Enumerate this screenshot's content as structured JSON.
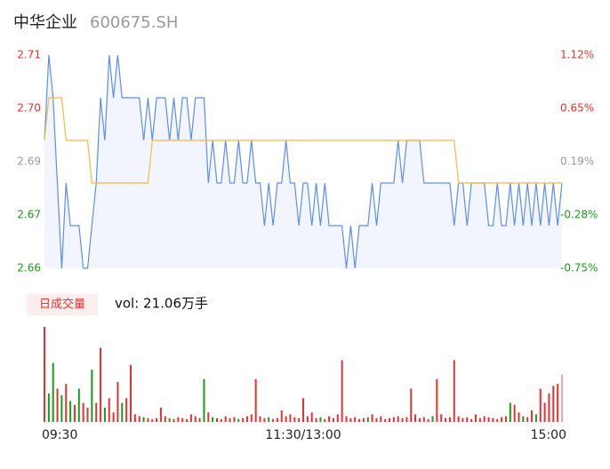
{
  "chart_data": [
    {
      "type": "line",
      "title": "中华企业",
      "subtitle": "600675.SH",
      "x": [
        0,
        2,
        4,
        6,
        8,
        10,
        12,
        14,
        16,
        18,
        20,
        22,
        24,
        26,
        28,
        30,
        32,
        34,
        36,
        38,
        40,
        42,
        44,
        46,
        48,
        50,
        52,
        54,
        56,
        58,
        60,
        62,
        64,
        66,
        68,
        70,
        72,
        74,
        76,
        78,
        80,
        82,
        84,
        86,
        88,
        90,
        92,
        94,
        96,
        98,
        100,
        102,
        104,
        106,
        108,
        110,
        112,
        114,
        116,
        118,
        120,
        122,
        124,
        126,
        128,
        130,
        132,
        134,
        136,
        138,
        140,
        142,
        144,
        146,
        148,
        150,
        152,
        154,
        156,
        158,
        160,
        162,
        164,
        166,
        168,
        170,
        172,
        174,
        176,
        178,
        180,
        182,
        184,
        186,
        188,
        190,
        192,
        194,
        196,
        198,
        200,
        202,
        204,
        206,
        208,
        210,
        212,
        214,
        216,
        218,
        220,
        222,
        224,
        226,
        228,
        230,
        232,
        234,
        236,
        238,
        240
      ],
      "xlim": [
        0,
        240
      ],
      "ylim": [
        2.66,
        2.71
      ],
      "yticks": [
        {
          "value": 2.71,
          "label": "2.71"
        },
        {
          "value": 2.6975,
          "label": "2.70"
        },
        {
          "value": 2.685,
          "label": "2.69"
        },
        {
          "value": 2.6725,
          "label": "2.67"
        },
        {
          "value": 2.66,
          "label": "2.66"
        }
      ],
      "ytick_colors": [
        "#e8302f",
        "#e8302f",
        "#999999",
        "#1a9a1a",
        "#1a9a1a"
      ],
      "y2lim": [
        -0.75,
        1.12
      ],
      "y2ticks": [
        {
          "value": 1.12,
          "label": "1.12%"
        },
        {
          "value": 0.6525,
          "label": "0.65%"
        },
        {
          "value": 0.185,
          "label": "0.19%"
        },
        {
          "value": -0.2825,
          "label": "-0.28%"
        },
        {
          "value": -0.75,
          "label": "-0.75%"
        }
      ],
      "series": [
        {
          "color": "#5b8ef0",
          "fill": "#f2f5fd",
          "values": [
            2.69,
            2.71,
            2.7,
            2.68,
            2.66,
            2.68,
            2.67,
            2.67,
            2.67,
            2.66,
            2.66,
            2.67,
            2.68,
            2.7,
            2.69,
            2.71,
            2.7,
            2.71,
            2.7,
            2.7,
            2.7,
            2.7,
            2.7,
            2.69,
            2.7,
            2.69,
            2.7,
            2.7,
            2.7,
            2.69,
            2.7,
            2.69,
            2.7,
            2.7,
            2.69,
            2.7,
            2.7,
            2.7,
            2.68,
            2.69,
            2.68,
            2.68,
            2.69,
            2.68,
            2.68,
            2.69,
            2.68,
            2.68,
            2.69,
            2.68,
            2.68,
            2.67,
            2.68,
            2.67,
            2.68,
            2.68,
            2.69,
            2.68,
            2.68,
            2.67,
            2.68,
            2.68,
            2.67,
            2.68,
            2.67,
            2.68,
            2.67,
            2.67,
            2.67,
            2.67,
            2.66,
            2.67,
            2.66,
            2.67,
            2.67,
            2.67,
            2.68,
            2.67,
            2.68,
            2.68,
            2.68,
            2.68,
            2.69,
            2.68,
            2.69,
            2.69,
            2.69,
            2.69,
            2.68,
            2.68,
            2.68,
            2.68,
            2.68,
            2.68,
            2.68,
            2.67,
            2.68,
            2.68,
            2.67,
            2.68,
            2.68,
            2.68,
            2.68,
            2.67,
            2.67,
            2.68,
            2.67,
            2.67,
            2.68,
            2.67,
            2.68,
            2.67,
            2.68,
            2.67,
            2.68,
            2.67,
            2.68,
            2.67,
            2.68,
            2.67,
            2.68
          ]
        },
        {
          "color": "#f5b942",
          "values": [
            2.69,
            2.7,
            2.7,
            2.7,
            2.7,
            2.69,
            2.69,
            2.69,
            2.69,
            2.69,
            2.69,
            2.68,
            2.68,
            2.68,
            2.68,
            2.68,
            2.68,
            2.68,
            2.68,
            2.68,
            2.68,
            2.68,
            2.68,
            2.68,
            2.68,
            2.69,
            2.69,
            2.69,
            2.69,
            2.69,
            2.69,
            2.69,
            2.69,
            2.69,
            2.69,
            2.69,
            2.69,
            2.69,
            2.69,
            2.69,
            2.69,
            2.69,
            2.69,
            2.69,
            2.69,
            2.69,
            2.69,
            2.69,
            2.69,
            2.69,
            2.69,
            2.69,
            2.69,
            2.69,
            2.69,
            2.69,
            2.69,
            2.69,
            2.69,
            2.69,
            2.69,
            2.69,
            2.69,
            2.69,
            2.69,
            2.69,
            2.69,
            2.69,
            2.69,
            2.69,
            2.69,
            2.69,
            2.69,
            2.69,
            2.69,
            2.69,
            2.69,
            2.69,
            2.69,
            2.69,
            2.69,
            2.69,
            2.69,
            2.69,
            2.69,
            2.69,
            2.69,
            2.69,
            2.69,
            2.69,
            2.69,
            2.69,
            2.69,
            2.69,
            2.69,
            2.69,
            2.68,
            2.68,
            2.68,
            2.68,
            2.68,
            2.68,
            2.68,
            2.68,
            2.68,
            2.68,
            2.68,
            2.68,
            2.68,
            2.68,
            2.68,
            2.68,
            2.68,
            2.68,
            2.68,
            2.68,
            2.68,
            2.68,
            2.68,
            2.68,
            2.68
          ]
        }
      ]
    },
    {
      "type": "bar",
      "badge": "日成交量",
      "summary": "vol: 21.06万手",
      "xlim": [
        0,
        240
      ],
      "xticks": [
        {
          "value": 0,
          "label": "09:30"
        },
        {
          "value": 120,
          "label": "11:30/13:00"
        },
        {
          "value": 240,
          "label": "15:00"
        }
      ],
      "ylim": [
        0,
        100
      ],
      "values": [
        100,
        30,
        62,
        35,
        28,
        40,
        22,
        18,
        35,
        20,
        15,
        55,
        20,
        78,
        15,
        25,
        10,
        42,
        20,
        25,
        60,
        8,
        6,
        5,
        4,
        3,
        4,
        15,
        6,
        4,
        3,
        5,
        4,
        3,
        8,
        6,
        4,
        45,
        10,
        5,
        4,
        3,
        6,
        4,
        5,
        3,
        4,
        6,
        8,
        45,
        6,
        4,
        5,
        3,
        4,
        12,
        6,
        8,
        5,
        4,
        25,
        6,
        10,
        4,
        5,
        3,
        6,
        4,
        8,
        65,
        6,
        4,
        5,
        3,
        4,
        5,
        8,
        4,
        6,
        3,
        4,
        5,
        6,
        4,
        5,
        35,
        8,
        4,
        5,
        3,
        6,
        45,
        8,
        4,
        5,
        65,
        6,
        4,
        5,
        3,
        8,
        4,
        6,
        5,
        4,
        3,
        5,
        6,
        20,
        18,
        10,
        6,
        5,
        12,
        8,
        35,
        20,
        30,
        38,
        40,
        50
      ],
      "bar_colors": [
        "#e8302f",
        "#1a9a1a",
        "#1a9a1a",
        "#e8302f",
        "#1a9a1a",
        "#e8302f",
        "#1a9a1a",
        "#e8302f",
        "#1a9a1a",
        "#e8302f",
        "#e8302f",
        "#1a9a1a",
        "#e8302f",
        "#e8302f",
        "#1a9a1a",
        "#e8302f",
        "#e8302f",
        "#e8302f",
        "#1a9a1a",
        "#e8302f",
        "#e8302f",
        "#e8302f",
        "#e8302f",
        "#1a9a1a",
        "#e8302f",
        "#e8302f",
        "#e8302f",
        "#e8302f",
        "#e8302f",
        "#1a9a1a",
        "#e8302f",
        "#e8302f",
        "#e8302f",
        "#e8302f",
        "#e8302f",
        "#e8302f",
        "#e8302f",
        "#1a9a1a",
        "#e8302f",
        "#1a9a1a",
        "#e8302f",
        "#e8302f",
        "#e8302f",
        "#e8302f",
        "#e8302f",
        "#1a9a1a",
        "#e8302f",
        "#e8302f",
        "#e8302f",
        "#e8302f",
        "#e8302f",
        "#e8302f",
        "#1a9a1a",
        "#e8302f",
        "#e8302f",
        "#e8302f",
        "#e8302f",
        "#e8302f",
        "#e8302f",
        "#e8302f",
        "#e8302f",
        "#e8302f",
        "#e8302f",
        "#e8302f",
        "#1a9a1a",
        "#e8302f",
        "#e8302f",
        "#e8302f",
        "#e8302f",
        "#e8302f",
        "#e8302f",
        "#e8302f",
        "#e8302f",
        "#e8302f",
        "#e8302f",
        "#1a9a1a",
        "#e8302f",
        "#e8302f",
        "#e8302f",
        "#e8302f",
        "#e8302f",
        "#e8302f",
        "#e8302f",
        "#e8302f",
        "#e8302f",
        "#e8302f",
        "#e8302f",
        "#e8302f",
        "#e8302f",
        "#e8302f",
        "#1a9a1a",
        "#e8302f",
        "#e8302f",
        "#e8302f",
        "#e8302f",
        "#e8302f",
        "#e8302f",
        "#e8302f",
        "#e8302f",
        "#e8302f",
        "#e8302f",
        "#e8302f",
        "#e8302f",
        "#e8302f",
        "#e8302f",
        "#e8302f",
        "#e8302f",
        "#e8302f",
        "#1a9a1a",
        "#e8302f",
        "#e8302f",
        "#1a9a1a",
        "#e8302f",
        "#e8302f",
        "#1a9a1a",
        "#e8302f",
        "#e8302f",
        "#e8302f",
        "#e8302f",
        "#e8302f",
        "#f4a6a6"
      ]
    }
  ]
}
